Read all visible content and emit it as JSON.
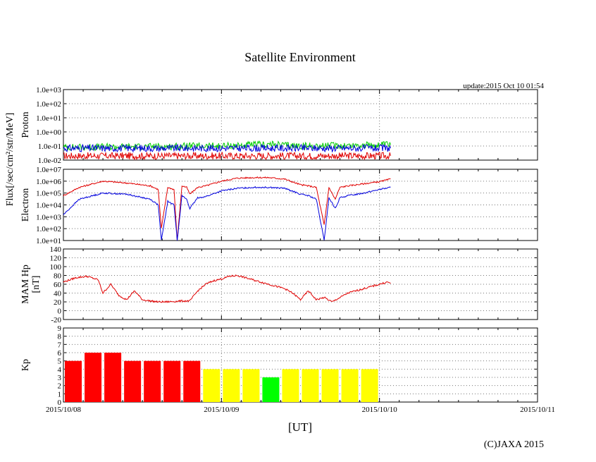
{
  "title": "Satellite Environment",
  "update": "update:2015 Oct 10 01:54",
  "copyright": "(C)JAXA 2015",
  "xlabel": "[UT]",
  "flux_label": "Flux[/sec/cm²/str/MeV]",
  "x_ticks": [
    "2015/10/08",
    "2015/10/09",
    "2015/10/10",
    "2015/10/11"
  ],
  "colors": {
    "red": "#e00000",
    "green": "#00cc00",
    "blue": "#0000dd",
    "yellow": "#ffff00",
    "kp_red": "#ff0000",
    "kp_green": "#00ff00"
  },
  "chart_data": [
    {
      "panel": "proton",
      "type": "line",
      "ylabel": "Proton",
      "yscale": "log",
      "ylim": [
        0.01,
        1000
      ],
      "y_ticks": [
        "1.0e-02",
        "1.0e-01",
        "1.0e+00",
        "1.0e+01",
        "1.0e+02",
        "1.0e+03"
      ],
      "xlim_days": [
        0,
        3
      ],
      "grid": true,
      "series": [
        {
          "color": "red",
          "x": [
            0,
            0.5,
            1.0,
            1.5,
            2.07
          ],
          "y": [
            0.02,
            0.02,
            0.02,
            0.02,
            0.02
          ]
        },
        {
          "color": "green",
          "x": [
            0,
            0.5,
            1.0,
            1.3,
            1.5,
            2.07
          ],
          "y": [
            0.08,
            0.09,
            0.1,
            0.13,
            0.1,
            0.12
          ]
        },
        {
          "color": "blue",
          "x": [
            0,
            0.5,
            1.0,
            1.5,
            2.07
          ],
          "y": [
            0.07,
            0.07,
            0.07,
            0.07,
            0.07
          ]
        }
      ]
    },
    {
      "panel": "electron",
      "type": "line",
      "ylabel": "Electron",
      "yscale": "log",
      "ylim": [
        10,
        10000000
      ],
      "y_ticks": [
        "1.0e+01",
        "1.0e+02",
        "1.0e+03",
        "1.0e+04",
        "1.0e+05",
        "1.0e+06",
        "1.0e+07"
      ],
      "xlim_days": [
        0,
        3
      ],
      "grid": true,
      "series": [
        {
          "color": "red",
          "x": [
            0,
            0.1,
            0.25,
            0.4,
            0.55,
            0.6,
            0.62,
            0.66,
            0.7,
            0.72,
            0.75,
            0.78,
            0.8,
            0.85,
            0.9,
            1.0,
            1.1,
            1.2,
            1.3,
            1.4,
            1.5,
            1.55,
            1.6,
            1.65,
            1.68,
            1.72,
            1.75,
            1.8,
            1.9,
            2.0,
            2.07
          ],
          "y": [
            60000,
            300000,
            1000000,
            700000,
            400000,
            200000,
            100,
            300000,
            200000,
            10,
            400000,
            300000,
            80000,
            300000,
            400000,
            1000000,
            1800000,
            2000000,
            2000000,
            1500000,
            500000,
            400000,
            300000,
            200,
            300000,
            30000,
            300000,
            400000,
            600000,
            900000,
            1500000
          ]
        },
        {
          "color": "blue",
          "x": [
            0,
            0.1,
            0.25,
            0.4,
            0.55,
            0.6,
            0.62,
            0.66,
            0.7,
            0.72,
            0.75,
            0.78,
            0.8,
            0.85,
            0.9,
            1.0,
            1.1,
            1.2,
            1.3,
            1.4,
            1.5,
            1.55,
            1.6,
            1.65,
            1.68,
            1.72,
            1.75,
            1.8,
            1.9,
            2.0,
            2.07
          ],
          "y": [
            1500,
            30000,
            100000,
            80000,
            30000,
            10000,
            10,
            20000,
            10000,
            10,
            60000,
            30000,
            5000,
            40000,
            50000,
            150000,
            250000,
            300000,
            300000,
            250000,
            80000,
            60000,
            30000,
            10,
            40000,
            5000,
            40000,
            60000,
            100000,
            200000,
            300000
          ]
        }
      ]
    },
    {
      "panel": "mam_hp",
      "type": "line",
      "ylabel": "MAM Hp",
      "yunit": "[nT]",
      "ylim": [
        -20,
        140
      ],
      "y_ticks": [
        -20,
        0,
        20,
        40,
        60,
        80,
        100,
        120,
        140
      ],
      "xlim_days": [
        0,
        3
      ],
      "grid": true,
      "series": [
        {
          "color": "red",
          "x": [
            0,
            0.08,
            0.15,
            0.22,
            0.25,
            0.3,
            0.35,
            0.4,
            0.45,
            0.5,
            0.55,
            0.6,
            0.65,
            0.7,
            0.75,
            0.8,
            0.85,
            0.9,
            0.95,
            1.0,
            1.05,
            1.1,
            1.15,
            1.2,
            1.3,
            1.4,
            1.45,
            1.5,
            1.55,
            1.6,
            1.65,
            1.7,
            1.8,
            1.9,
            2.0,
            2.05,
            2.07
          ],
          "y": [
            65,
            75,
            78,
            70,
            40,
            60,
            35,
            25,
            45,
            25,
            22,
            20,
            20,
            21,
            22,
            22,
            45,
            60,
            68,
            72,
            78,
            80,
            75,
            70,
            60,
            50,
            40,
            25,
            45,
            25,
            30,
            20,
            40,
            50,
            60,
            65,
            62
          ]
        }
      ]
    },
    {
      "panel": "kp",
      "type": "bar",
      "ylabel": "Kp",
      "ylim": [
        0,
        9
      ],
      "y_ticks": [
        0,
        1,
        2,
        3,
        4,
        5,
        6,
        7,
        8,
        9
      ],
      "xlim_days": [
        0,
        3
      ],
      "grid": true,
      "bar_width_hours": 3,
      "values": [
        5,
        6,
        6,
        5,
        5,
        5,
        5,
        4,
        4,
        4,
        3,
        4,
        4,
        4,
        4,
        4
      ],
      "colors": [
        "kp_red",
        "kp_red",
        "kp_red",
        "kp_red",
        "kp_red",
        "kp_red",
        "kp_red",
        "yellow",
        "yellow",
        "yellow",
        "kp_green",
        "yellow",
        "yellow",
        "yellow",
        "yellow",
        "yellow"
      ]
    }
  ]
}
